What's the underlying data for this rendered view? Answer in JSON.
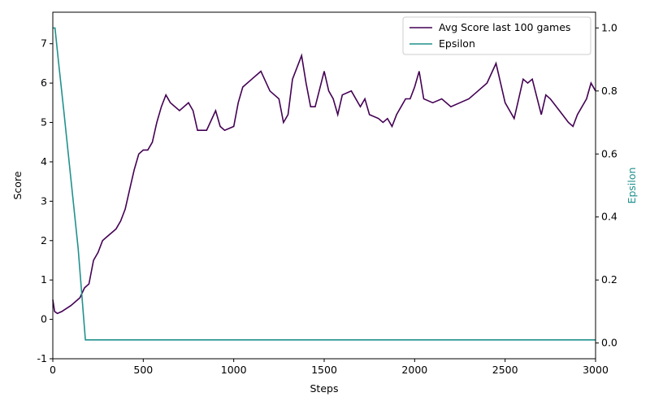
{
  "chart_data": {
    "type": "line",
    "xlabel": "Steps",
    "ylabel": "Score",
    "y2label": "Epsilon",
    "xlim": [
      0,
      3000
    ],
    "xticks": [
      0,
      500,
      1000,
      1500,
      2000,
      2500,
      3000
    ],
    "ylim": [
      -1,
      7.8
    ],
    "yticks": [
      -1,
      0,
      1,
      2,
      3,
      4,
      5,
      6,
      7
    ],
    "y2lim": [
      -0.05,
      1.05
    ],
    "y2ticks": [
      {
        "value": 0,
        "label": "0.0"
      },
      0.2,
      0.4,
      0.6,
      0.8,
      {
        "value": 1,
        "label": "1.0"
      }
    ],
    "legend": "upper right",
    "series": [
      {
        "name": "Avg Score last 100 games",
        "color": "#440154",
        "x": [
          0,
          10,
          25,
          50,
          100,
          150,
          175,
          200,
          225,
          250,
          275,
          300,
          325,
          350,
          375,
          400,
          425,
          450,
          475,
          500,
          525,
          550,
          575,
          600,
          625,
          650,
          700,
          750,
          775,
          800,
          850,
          900,
          925,
          950,
          1000,
          1025,
          1050,
          1100,
          1150,
          1200,
          1250,
          1275,
          1300,
          1325,
          1350,
          1375,
          1400,
          1425,
          1450,
          1500,
          1525,
          1550,
          1575,
          1600,
          1650,
          1700,
          1725,
          1750,
          1800,
          1825,
          1850,
          1875,
          1900,
          1950,
          1975,
          2000,
          2025,
          2050,
          2100,
          2150,
          2200,
          2250,
          2300,
          2350,
          2400,
          2450,
          2475,
          2500,
          2550,
          2575,
          2600,
          2625,
          2650,
          2700,
          2725,
          2750,
          2800,
          2850,
          2875,
          2900,
          2950,
          2975,
          3000
        ],
        "values": [
          0.5,
          0.2,
          0.15,
          0.2,
          0.35,
          0.55,
          0.8,
          0.9,
          1.5,
          1.7,
          2.0,
          2.1,
          2.2,
          2.3,
          2.5,
          2.8,
          3.3,
          3.8,
          4.2,
          4.3,
          4.3,
          4.5,
          5.0,
          5.4,
          5.7,
          5.5,
          5.3,
          5.5,
          5.3,
          4.8,
          4.8,
          5.3,
          4.9,
          4.8,
          4.9,
          5.5,
          5.9,
          6.1,
          6.3,
          5.8,
          5.6,
          5.0,
          5.2,
          6.1,
          6.4,
          6.7,
          6.0,
          5.4,
          5.4,
          6.3,
          5.8,
          5.6,
          5.2,
          5.7,
          5.8,
          5.4,
          5.6,
          5.2,
          5.1,
          5.0,
          5.1,
          4.9,
          5.2,
          5.6,
          5.6,
          5.9,
          6.3,
          5.6,
          5.5,
          5.6,
          5.4,
          5.5,
          5.6,
          5.8,
          6.0,
          6.5,
          6.0,
          5.5,
          5.1,
          5.6,
          6.1,
          6.0,
          6.1,
          5.2,
          5.7,
          5.6,
          5.3,
          5.0,
          4.9,
          5.2,
          5.6,
          6.0,
          5.8
        ]
      },
      {
        "name": "Epsilon",
        "color": "#21918c",
        "axis": "y2",
        "x": [
          0,
          12,
          30,
          60,
          100,
          140,
          180,
          3000
        ],
        "values": [
          1.0,
          1.0,
          0.9,
          0.74,
          0.52,
          0.3,
          0.01,
          0.01
        ]
      }
    ]
  }
}
